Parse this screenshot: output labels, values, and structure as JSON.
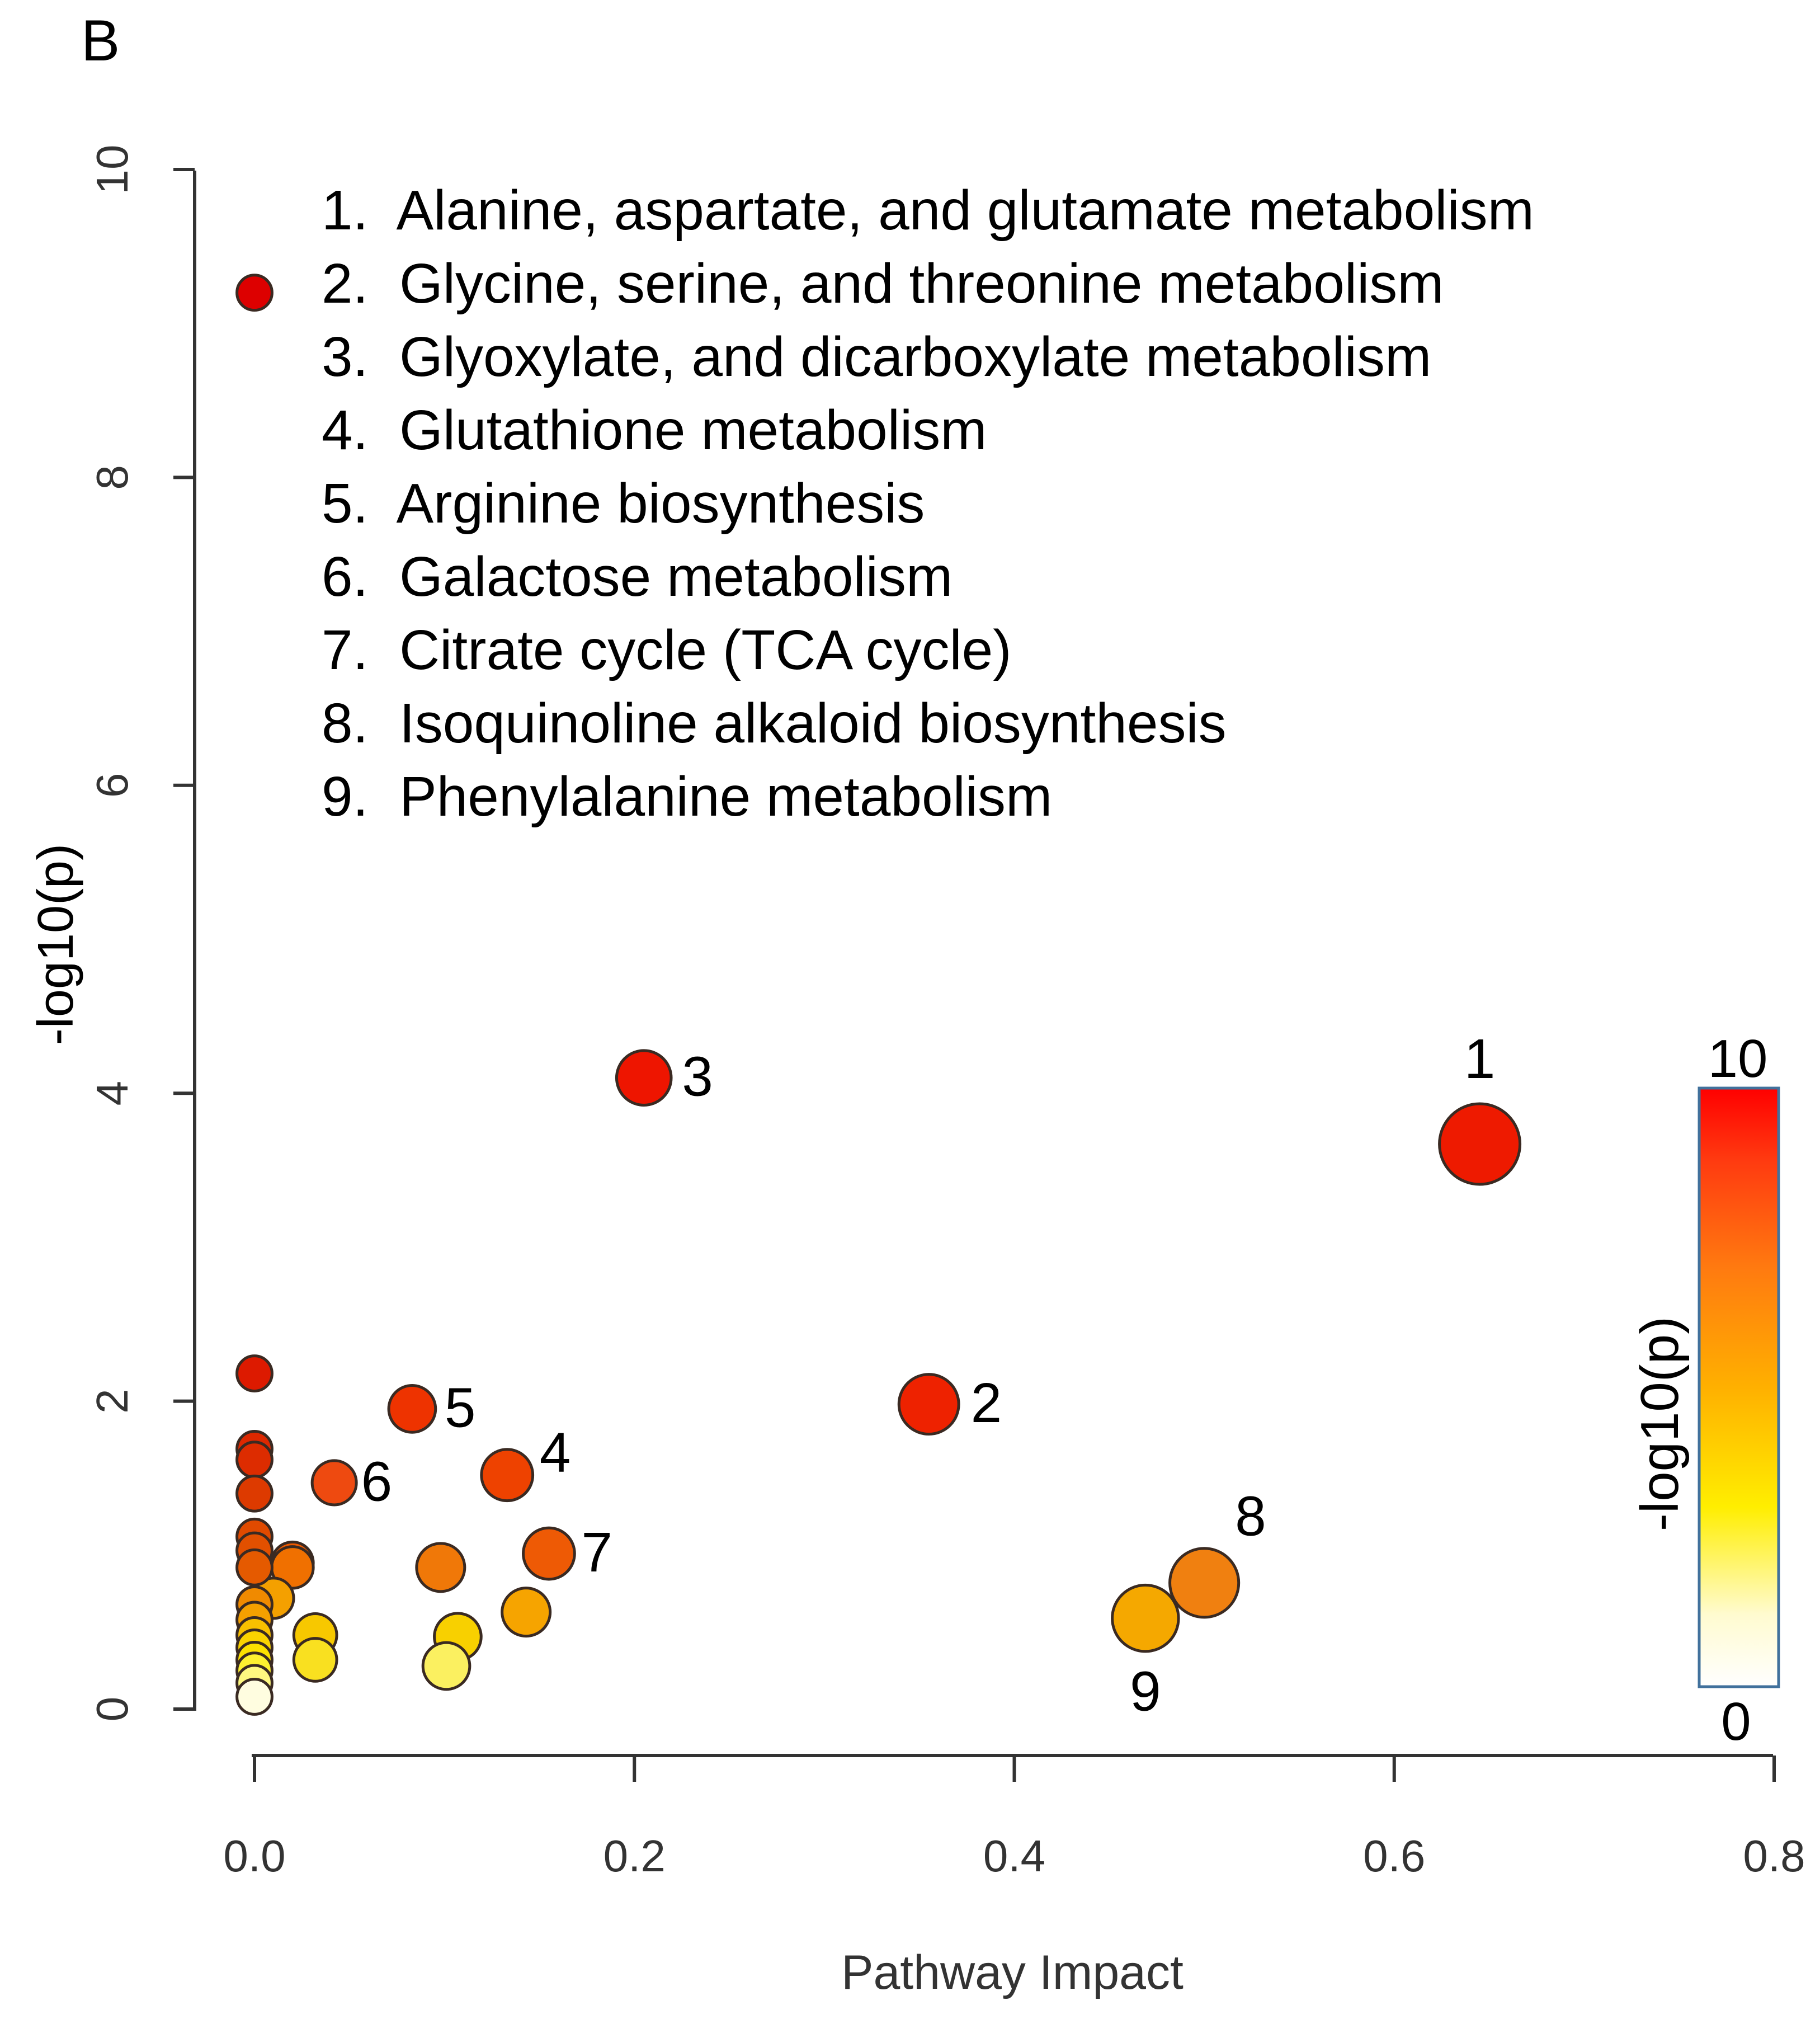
{
  "panel_label": "B",
  "chart_data": {
    "type": "scatter",
    "title": "",
    "xlabel": "Pathway Impact",
    "ylabel": "-log10(p)",
    "xlim": [
      0.0,
      0.8
    ],
    "ylim": [
      0,
      10
    ],
    "x_ticks": [
      "0.0",
      "0.2",
      "0.4",
      "0.6",
      "0.8"
    ],
    "y_ticks": [
      "0",
      "2",
      "4",
      "6",
      "8",
      "10"
    ],
    "size_encodes": "pathway impact",
    "color_encodes": "-log10(p)",
    "legend_entries": [
      "1.  Alanine, aspartate, and glutamate metabolism",
      "2.  Glycine, serine, and threonine metabolism",
      "3.  Glyoxylate, and dicarboxylate metabolism",
      "4.  Glutathione metabolism",
      "5.  Arginine biosynthesis",
      "6.  Galactose metabolism",
      "7.  Citrate cycle (TCA cycle)",
      "8.  Isoquinoline alkaloid biosynthesis",
      "9.  Phenylalanine metabolism"
    ],
    "legend_position": "top",
    "colorbar": {
      "title": "-log10(p)",
      "max_label": "10",
      "min_label": "0",
      "position": "right"
    },
    "points": [
      {
        "label": "1",
        "x": 0.645,
        "y": 3.67,
        "size": 1.0,
        "color": "#ee1a00"
      },
      {
        "label": "2",
        "x": 0.355,
        "y": 1.98,
        "size": 0.68,
        "color": "#ee2200"
      },
      {
        "label": "3",
        "x": 0.205,
        "y": 4.1,
        "size": 0.6,
        "color": "#ee1500"
      },
      {
        "label": "4",
        "x": 0.133,
        "y": 1.52,
        "size": 0.55,
        "color": "#ee4200"
      },
      {
        "label": "5",
        "x": 0.083,
        "y": 1.95,
        "size": 0.48,
        "color": "#ee3300"
      },
      {
        "label": "6",
        "x": 0.042,
        "y": 1.47,
        "size": 0.44,
        "color": "#ee4a10"
      },
      {
        "label": "7",
        "x": 0.155,
        "y": 1.01,
        "size": 0.55,
        "color": "#ee5a05"
      },
      {
        "label": "8",
        "x": 0.5,
        "y": 0.82,
        "size": 0.82,
        "color": "#f08010"
      },
      {
        "label": "9",
        "x": 0.469,
        "y": 0.59,
        "size": 0.78,
        "color": "#f5a800"
      },
      {
        "label": "",
        "x": 0.0,
        "y": 9.2,
        "size": 0.3,
        "color": "#dd0000"
      },
      {
        "label": "",
        "x": 0.0,
        "y": 2.18,
        "size": 0.3,
        "color": "#dd1a00"
      },
      {
        "label": "",
        "x": 0.0,
        "y": 1.69,
        "size": 0.3,
        "color": "#dd2800"
      },
      {
        "label": "",
        "x": 0.0,
        "y": 1.62,
        "size": 0.3,
        "color": "#dd2c00"
      },
      {
        "label": "",
        "x": 0.0,
        "y": 1.4,
        "size": 0.3,
        "color": "#dd3a00"
      },
      {
        "label": "",
        "x": 0.0,
        "y": 1.12,
        "size": 0.3,
        "color": "#e04a00"
      },
      {
        "label": "",
        "x": 0.0,
        "y": 1.03,
        "size": 0.3,
        "color": "#e25000"
      },
      {
        "label": "",
        "x": 0.0,
        "y": 0.92,
        "size": 0.3,
        "color": "#e55a00"
      },
      {
        "label": "",
        "x": 0.0,
        "y": 0.68,
        "size": 0.3,
        "color": "#f08a00"
      },
      {
        "label": "",
        "x": 0.0,
        "y": 0.58,
        "size": 0.3,
        "color": "#f4a000"
      },
      {
        "label": "",
        "x": 0.0,
        "y": 0.48,
        "size": 0.3,
        "color": "#f8c000"
      },
      {
        "label": "",
        "x": 0.0,
        "y": 0.4,
        "size": 0.3,
        "color": "#fad200"
      },
      {
        "label": "",
        "x": 0.0,
        "y": 0.32,
        "size": 0.3,
        "color": "#fce000"
      },
      {
        "label": "",
        "x": 0.0,
        "y": 0.25,
        "size": 0.3,
        "color": "#fdf030"
      },
      {
        "label": "",
        "x": 0.0,
        "y": 0.17,
        "size": 0.3,
        "color": "#fef880"
      },
      {
        "label": "",
        "x": 0.0,
        "y": 0.08,
        "size": 0.3,
        "color": "#fffde0"
      },
      {
        "label": "",
        "x": 0.02,
        "y": 0.95,
        "size": 0.4,
        "color": "#ee5a00"
      },
      {
        "label": "",
        "x": 0.02,
        "y": 0.92,
        "size": 0.4,
        "color": "#f07000"
      },
      {
        "label": "",
        "x": 0.01,
        "y": 0.72,
        "size": 0.38,
        "color": "#f4a000"
      },
      {
        "label": "",
        "x": 0.098,
        "y": 0.92,
        "size": 0.5,
        "color": "#f07808"
      },
      {
        "label": "",
        "x": 0.143,
        "y": 0.63,
        "size": 0.5,
        "color": "#f6a400"
      },
      {
        "label": "",
        "x": 0.032,
        "y": 0.48,
        "size": 0.42,
        "color": "#f7c800"
      },
      {
        "label": "",
        "x": 0.032,
        "y": 0.32,
        "size": 0.42,
        "color": "#f9e020"
      },
      {
        "label": "",
        "x": 0.107,
        "y": 0.47,
        "size": 0.48,
        "color": "#f8d000"
      },
      {
        "label": "",
        "x": 0.101,
        "y": 0.28,
        "size": 0.48,
        "color": "#fbf060"
      }
    ]
  }
}
